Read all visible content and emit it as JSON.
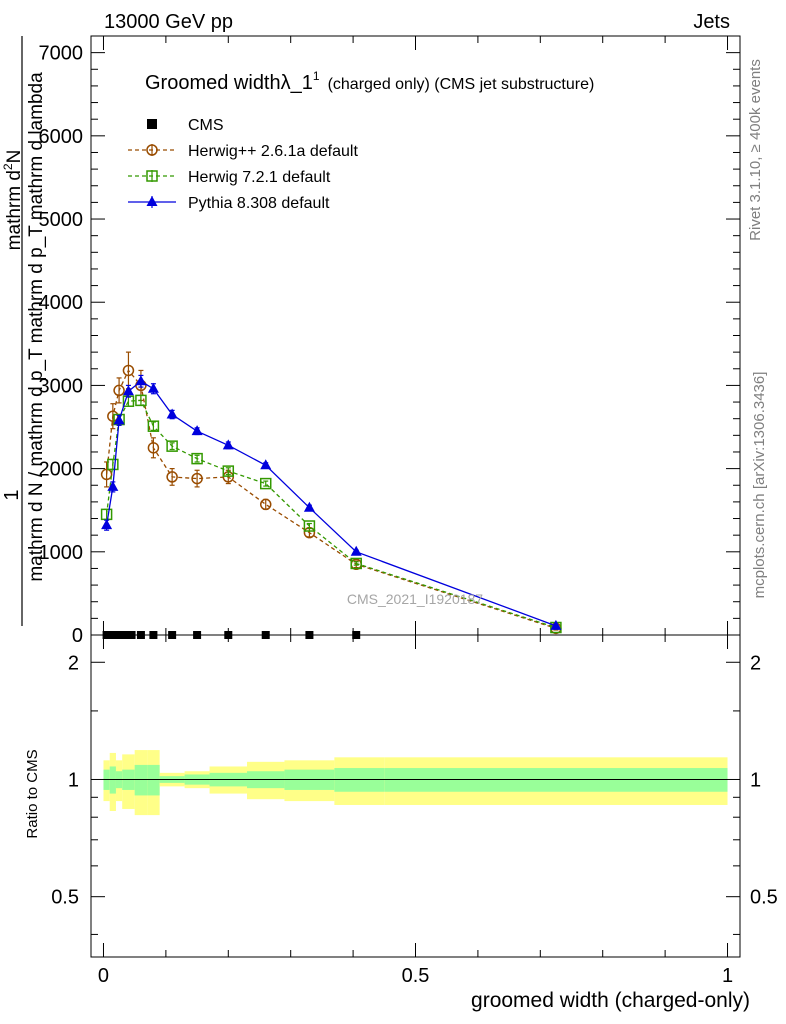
{
  "header": {
    "left": "13000 GeV pp",
    "right": "Jets"
  },
  "side_labels": {
    "rivet": "Rivet 3.1.10, ≥ 400k events",
    "mcplots": "mcplots.cern.ch [arXiv:1306.3436]"
  },
  "watermark": "CMS_2021_I1920187",
  "chart_data": [
    {
      "type": "line",
      "title": "Groomed widthλ_1",
      "title_sup": "1",
      "subtitle": "(charged only) (CMS jet substructure)",
      "xlabel": "",
      "ylabel": {
        "numerator": "1",
        "denominator": "mathrm d N / mathrm d p_T mathrm d p_T mathrm d lambda",
        "top": "mathrm d²N",
        "top_sup": "2"
      },
      "xlim": [
        -0.02,
        1.02
      ],
      "ylim": [
        0,
        7200
      ],
      "yticks": [
        0,
        1000,
        2000,
        3000,
        4000,
        5000,
        6000,
        7000
      ],
      "ytick_labels": [
        "0",
        "1000",
        "2000",
        "3000",
        "4000",
        "5000",
        "6000",
        "7000"
      ],
      "legend_position": "top-left",
      "series": [
        {
          "name": "CMS",
          "style": "data",
          "color": "#000000",
          "marker": "square",
          "x": [
            0.005,
            0.015,
            0.025,
            0.035,
            0.045,
            0.06,
            0.08,
            0.11,
            0.15,
            0.2,
            0.26,
            0.33,
            0.405
          ],
          "y": [
            0,
            0,
            0,
            0,
            0,
            0,
            0,
            0,
            0,
            0,
            0,
            0,
            0
          ]
        },
        {
          "name": "Herwig++ 2.6.1a default",
          "style": "dashed",
          "color": "#994c00",
          "marker": "circle",
          "x": [
            0.005,
            0.015,
            0.025,
            0.04,
            0.06,
            0.08,
            0.11,
            0.15,
            0.2,
            0.26,
            0.33,
            0.405,
            0.725
          ],
          "y": [
            1930,
            2630,
            2940,
            3180,
            3000,
            2250,
            1900,
            1880,
            1900,
            1570,
            1230,
            850,
            80
          ],
          "err": [
            150,
            150,
            150,
            220,
            180,
            120,
            100,
            100,
            80,
            60,
            50,
            40,
            20
          ]
        },
        {
          "name": "Herwig 7.2.1 default",
          "style": "dashed",
          "color": "#339900",
          "marker": "square",
          "x": [
            0.005,
            0.015,
            0.025,
            0.04,
            0.06,
            0.08,
            0.11,
            0.15,
            0.2,
            0.26,
            0.33,
            0.405,
            0.725
          ],
          "y": [
            1450,
            2050,
            2590,
            2810,
            2820,
            2510,
            2270,
            2120,
            1970,
            1820,
            1310,
            860,
            90
          ],
          "err": [
            60,
            60,
            60,
            60,
            60,
            50,
            40,
            40,
            40,
            30,
            30,
            20,
            10
          ]
        },
        {
          "name": "Pythia 8.308 default",
          "style": "solid",
          "color": "#0000dd",
          "marker": "triangle",
          "x": [
            0.005,
            0.015,
            0.025,
            0.04,
            0.06,
            0.08,
            0.11,
            0.15,
            0.2,
            0.26,
            0.33,
            0.405,
            0.725
          ],
          "y": [
            1320,
            1780,
            2580,
            2930,
            3050,
            2960,
            2650,
            2450,
            2280,
            2040,
            1530,
            1000,
            110
          ],
          "err": [
            60,
            60,
            60,
            70,
            70,
            60,
            50,
            40,
            40,
            30,
            30,
            20,
            10
          ]
        }
      ]
    },
    {
      "type": "area",
      "title": "",
      "xlabel": "groomed width (charged-only)",
      "ylabel": "Ratio to CMS",
      "xlim": [
        -0.02,
        1.02
      ],
      "ylim": [
        0.35,
        2.35
      ],
      "yscale": "log",
      "yticks": [
        0.5,
        1,
        2
      ],
      "ytick_labels": [
        "0.5",
        "1",
        "2"
      ],
      "xticks": [
        0,
        0.5,
        1
      ],
      "xtick_labels": [
        "0",
        "0.5",
        "1"
      ],
      "reference": 1,
      "bins": [
        0,
        0.01,
        0.02,
        0.03,
        0.05,
        0.07,
        0.09,
        0.13,
        0.17,
        0.23,
        0.29,
        0.37,
        0.45,
        1.0
      ],
      "stat_err": [
        0.06,
        0.08,
        0.05,
        0.06,
        0.09,
        0.09,
        0.02,
        0.03,
        0.04,
        0.05,
        0.06,
        0.07,
        0.07
      ],
      "total_err": [
        0.12,
        0.17,
        0.12,
        0.16,
        0.19,
        0.19,
        0.04,
        0.05,
        0.08,
        0.11,
        0.12,
        0.14,
        0.14
      ]
    }
  ]
}
